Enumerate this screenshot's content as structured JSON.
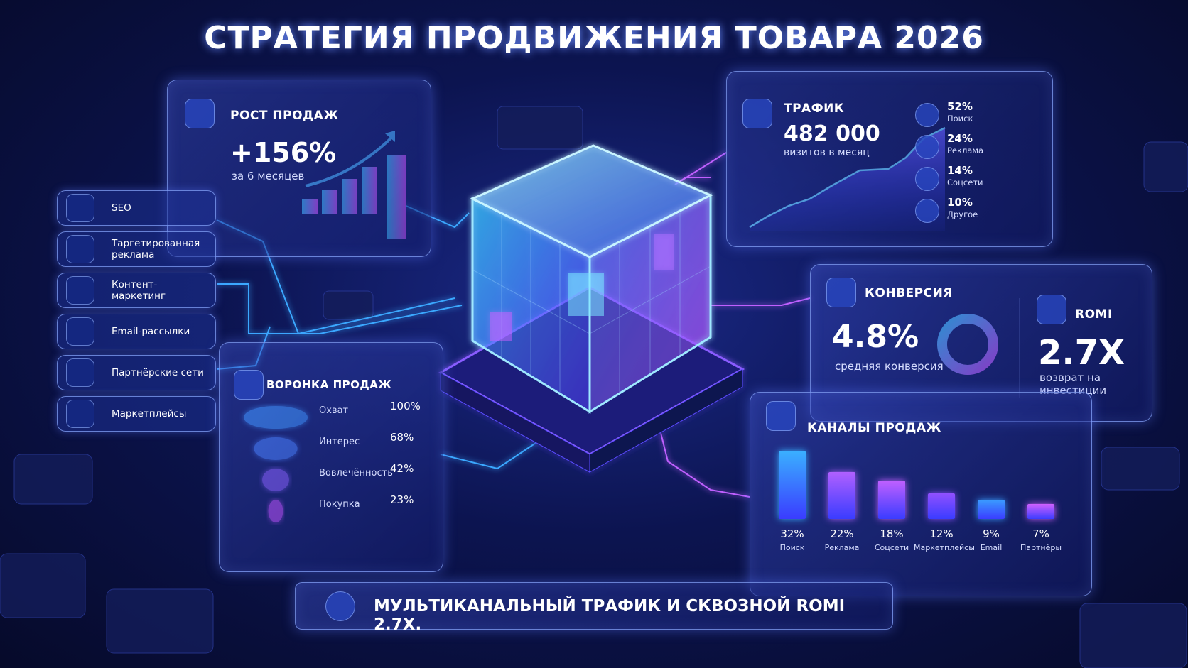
{
  "title": "СТРАТЕГИЯ ПРОДВИЖЕНИЯ ТОВАРА 2026",
  "sales_growth": {
    "title": "РОСТ ПРОДАЖ",
    "value": "+156%",
    "caption": "за 6 месяцев"
  },
  "channels_list": [
    "SEO",
    "Таргетированная реклама",
    "Контент-маркетинг",
    "Email-рассылки",
    "Партнёрские сети",
    "Маркетплейсы"
  ],
  "traffic": {
    "title": "ТРАФИК",
    "value": "482 000",
    "caption": "визитов в месяц",
    "sources": [
      {
        "share": "52%",
        "name": "Поиск"
      },
      {
        "share": "24%",
        "name": "Реклама"
      },
      {
        "share": "14%",
        "name": "Соцсети"
      },
      {
        "share": "10%",
        "name": "Другое"
      }
    ]
  },
  "conversion": {
    "title": "КОНВЕРСИЯ",
    "value": "4.8%",
    "caption": "средняя конверсия"
  },
  "romi": {
    "title": "ROMI",
    "value": "2.7X",
    "caption": "возврат на инвестиции"
  },
  "funnel": {
    "title": "ВОРОНКА ПРОДАЖ",
    "stages": [
      {
        "name": "Охват",
        "value": 100,
        "value_label": "100%"
      },
      {
        "name": "Интерес",
        "value": 68,
        "value_label": "68%"
      },
      {
        "name": "Вовлечённость",
        "value": 42,
        "value_label": "42%"
      },
      {
        "name": "Покупка",
        "value": 23,
        "value_label": "23%"
      }
    ]
  },
  "sales_channels": {
    "title": "КАНАЛЫ ПРОДАЖ",
    "channels": [
      {
        "name": "Поиск",
        "value": 32,
        "value_label": "32%"
      },
      {
        "name": "Реклама",
        "value": 22,
        "value_label": "22%"
      },
      {
        "name": "Соцсети",
        "value": 18,
        "value_label": "18%"
      },
      {
        "name": "Маркетплейсы",
        "value": 12,
        "value_label": "12%"
      },
      {
        "name": "Email",
        "value": 9,
        "value_label": "9%"
      },
      {
        "name": "Партнёры",
        "value": 7,
        "value_label": "7%"
      }
    ]
  },
  "footer": "МУЛЬТИКАНАЛЬНЫЙ ТРАФИК И СКВОЗНОЙ ROMI 2.7X."
}
